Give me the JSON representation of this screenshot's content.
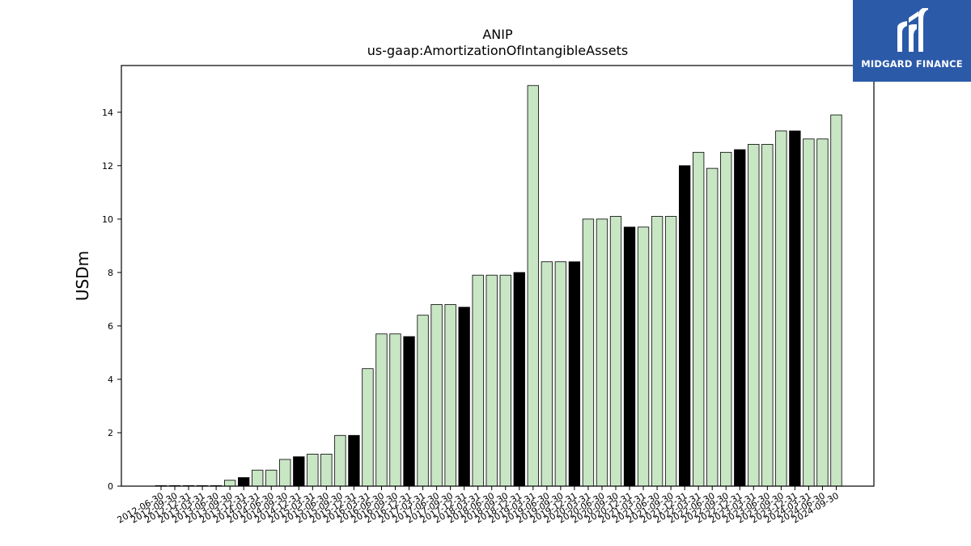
{
  "brand": {
    "name": "MIDGARD FINANCE",
    "logo_icon": "midgard-logo-icon",
    "background": "#2b5aa9"
  },
  "chart_data": {
    "type": "bar",
    "title": "ANIP",
    "subtitle": "us-gaap:AmortizationOfIntangibleAssets",
    "xlabel": "",
    "ylabel": "USDm",
    "ylim": [
      0,
      15.75
    ],
    "yticks": [
      0,
      2,
      4,
      6,
      8,
      10,
      12,
      14
    ],
    "grid": false,
    "colors": {
      "quarter": "#c8e6c4",
      "fiscal_year_end": "#000000",
      "edge": "#000000"
    },
    "categories": [
      "2012-06-30",
      "2012-09-30",
      "2012-12-31",
      "2013-03-31",
      "2013-06-30",
      "2013-09-30",
      "2013-12-31",
      "2014-03-31",
      "2014-06-30",
      "2014-09-30",
      "2014-12-31",
      "2015-03-31",
      "2015-06-30",
      "2015-09-30",
      "2015-12-31",
      "2016-03-31",
      "2016-06-30",
      "2016-09-30",
      "2016-12-31",
      "2017-03-31",
      "2017-06-30",
      "2017-09-30",
      "2017-12-31",
      "2018-03-31",
      "2018-06-30",
      "2018-09-30",
      "2018-12-31",
      "2019-03-31",
      "2019-06-30",
      "2019-09-30",
      "2019-12-31",
      "2020-03-31",
      "2020-06-30",
      "2020-09-30",
      "2020-12-31",
      "2021-03-31",
      "2021-06-30",
      "2021-09-30",
      "2021-12-31",
      "2022-03-31",
      "2022-06-30",
      "2022-09-30",
      "2022-12-31",
      "2023-03-31",
      "2023-06-30",
      "2023-09-30",
      "2023-12-31",
      "2024-03-31",
      "2024-06-30",
      "2024-09-30"
    ],
    "values": [
      0.02,
      0.02,
      0.02,
      0.02,
      0.02,
      0.22,
      0.32,
      0.6,
      0.6,
      1.0,
      1.1,
      1.2,
      1.2,
      1.9,
      1.9,
      4.4,
      5.7,
      5.7,
      5.6,
      6.4,
      6.8,
      6.8,
      6.7,
      7.9,
      7.9,
      7.9,
      8.0,
      15.0,
      8.4,
      8.4,
      8.4,
      10.0,
      10.0,
      10.1,
      9.7,
      9.7,
      10.1,
      10.1,
      12.0,
      12.5,
      11.9,
      12.5,
      12.6,
      12.8,
      12.8,
      13.3,
      13.3,
      13.0,
      13.0,
      13.9
    ],
    "highlight": [
      false,
      false,
      false,
      false,
      false,
      false,
      true,
      false,
      false,
      false,
      true,
      false,
      false,
      false,
      true,
      false,
      false,
      false,
      true,
      false,
      false,
      false,
      true,
      false,
      false,
      false,
      true,
      false,
      false,
      false,
      true,
      false,
      false,
      false,
      true,
      false,
      false,
      false,
      true,
      false,
      false,
      false,
      true,
      false,
      false,
      false,
      true,
      false,
      false,
      false
    ]
  }
}
